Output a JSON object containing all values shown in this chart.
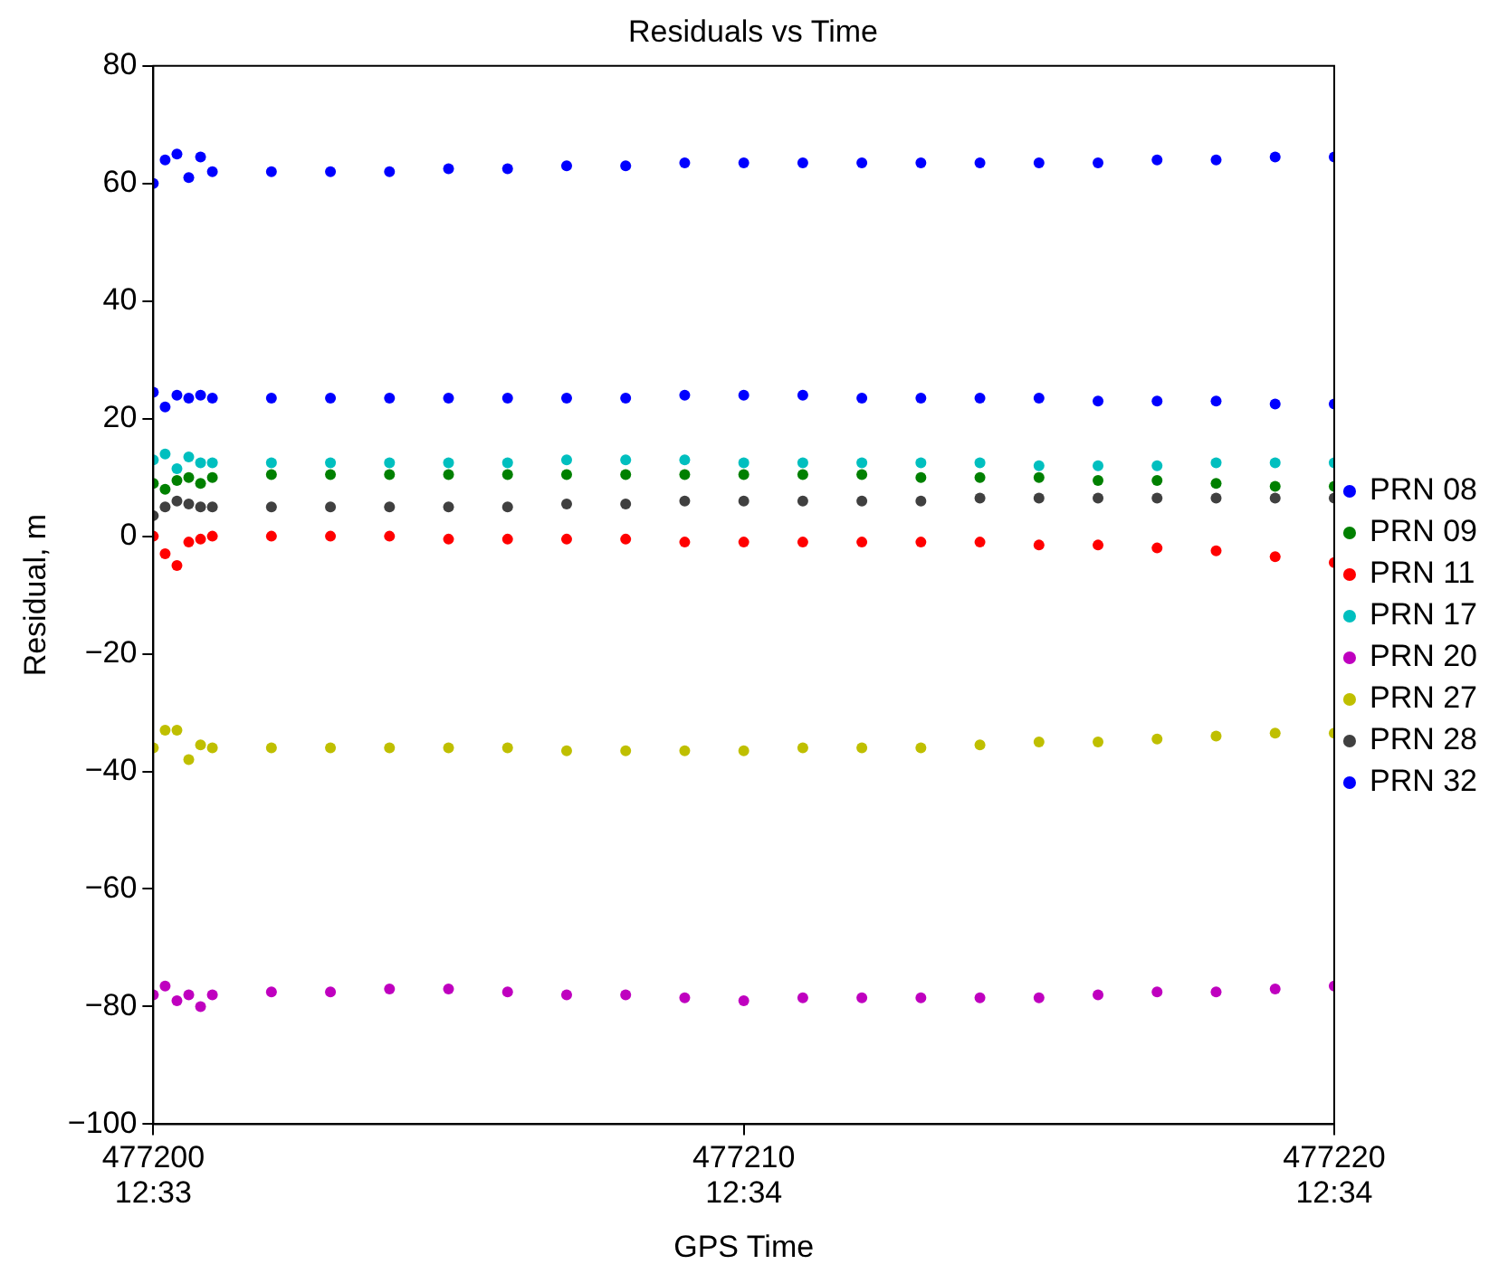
{
  "chart_data": {
    "type": "scatter",
    "title": "Residuals vs Time",
    "xlabel": "GPS Time",
    "ylabel": "Residual, m",
    "x": [
      477200,
      477200.2,
      477200.4,
      477200.6,
      477200.8,
      477201,
      477202,
      477203,
      477204,
      477205,
      477206,
      477207,
      477208,
      477209,
      477210,
      477211,
      477212,
      477213,
      477214,
      477215,
      477216,
      477217,
      477218,
      477219,
      477220
    ],
    "series": [
      {
        "name": "PRN 08",
        "color": "#0000ff",
        "values": [
          60,
          64,
          65,
          61,
          64.5,
          62,
          62,
          62,
          62,
          62.5,
          62.5,
          63,
          63,
          63.5,
          63.5,
          63.5,
          63.5,
          63.5,
          63.5,
          63.5,
          63.5,
          64,
          64,
          64.5,
          64.5
        ]
      },
      {
        "name": "PRN 09",
        "color": "#008000",
        "values": [
          9,
          8,
          9.5,
          10,
          9,
          10,
          10.5,
          10.5,
          10.5,
          10.5,
          10.5,
          10.5,
          10.5,
          10.5,
          10.5,
          10.5,
          10.5,
          10,
          10,
          10,
          9.5,
          9.5,
          9,
          8.5,
          8.5
        ]
      },
      {
        "name": "PRN 11",
        "color": "#ff0000",
        "values": [
          0,
          -3,
          -5,
          -1,
          -0.5,
          0,
          0,
          0,
          0,
          -0.5,
          -0.5,
          -0.5,
          -0.5,
          -1,
          -1,
          -1,
          -1,
          -1,
          -1,
          -1.5,
          -1.5,
          -2,
          -2.5,
          -3.5,
          -4.5
        ]
      },
      {
        "name": "PRN 17",
        "color": "#00bfbf",
        "values": [
          13,
          14,
          11.5,
          13.5,
          12.5,
          12.5,
          12.5,
          12.5,
          12.5,
          12.5,
          12.5,
          13,
          13,
          13,
          12.5,
          12.5,
          12.5,
          12.5,
          12.5,
          12,
          12,
          12,
          12.5,
          12.5,
          12.5
        ]
      },
      {
        "name": "PRN 20",
        "color": "#bf00bf",
        "values": [
          -78,
          -76.5,
          -79,
          -78,
          -80,
          -78,
          -77.5,
          -77.5,
          -77,
          -77,
          -77.5,
          -78,
          -78,
          -78.5,
          -79,
          -78.5,
          -78.5,
          -78.5,
          -78.5,
          -78.5,
          -78,
          -77.5,
          -77.5,
          -77,
          -76.5
        ]
      },
      {
        "name": "PRN 27",
        "color": "#bfbf00",
        "values": [
          -36,
          -33,
          -33,
          -38,
          -35.5,
          -36,
          -36,
          -36,
          -36,
          -36,
          -36,
          -36.5,
          -36.5,
          -36.5,
          -36.5,
          -36,
          -36,
          -36,
          -35.5,
          -35,
          -35,
          -34.5,
          -34,
          -33.5,
          -33.5
        ]
      },
      {
        "name": "PRN 28",
        "color": "#404040",
        "values": [
          3.5,
          5,
          6,
          5.5,
          5,
          5,
          5,
          5,
          5,
          5,
          5,
          5.5,
          5.5,
          6,
          6,
          6,
          6,
          6,
          6.5,
          6.5,
          6.5,
          6.5,
          6.5,
          6.5,
          6.5
        ]
      },
      {
        "name": "PRN 32",
        "color": "#0000ff",
        "values": [
          24.5,
          22,
          24,
          23.5,
          24,
          23.5,
          23.5,
          23.5,
          23.5,
          23.5,
          23.5,
          23.5,
          23.5,
          24,
          24,
          24,
          23.5,
          23.5,
          23.5,
          23.5,
          23,
          23,
          23,
          22.5,
          22.5
        ]
      }
    ],
    "xlim": [
      477200,
      477220
    ],
    "xticks": [
      477200,
      477210,
      477220
    ],
    "annotations": [
      "12:33",
      "12:34",
      "12:34"
    ],
    "ylim": [
      -100,
      80
    ],
    "yticks": [
      {
        "value": -100,
        "label": "−100"
      },
      {
        "value": -80,
        "label": "−80"
      },
      {
        "value": -60,
        "label": "−60"
      },
      {
        "value": -40,
        "label": "−40"
      },
      {
        "value": -20,
        "label": "−20"
      },
      0,
      20,
      40,
      60,
      80
    ],
    "grid": false,
    "legend": "right",
    "marker": "circle"
  }
}
